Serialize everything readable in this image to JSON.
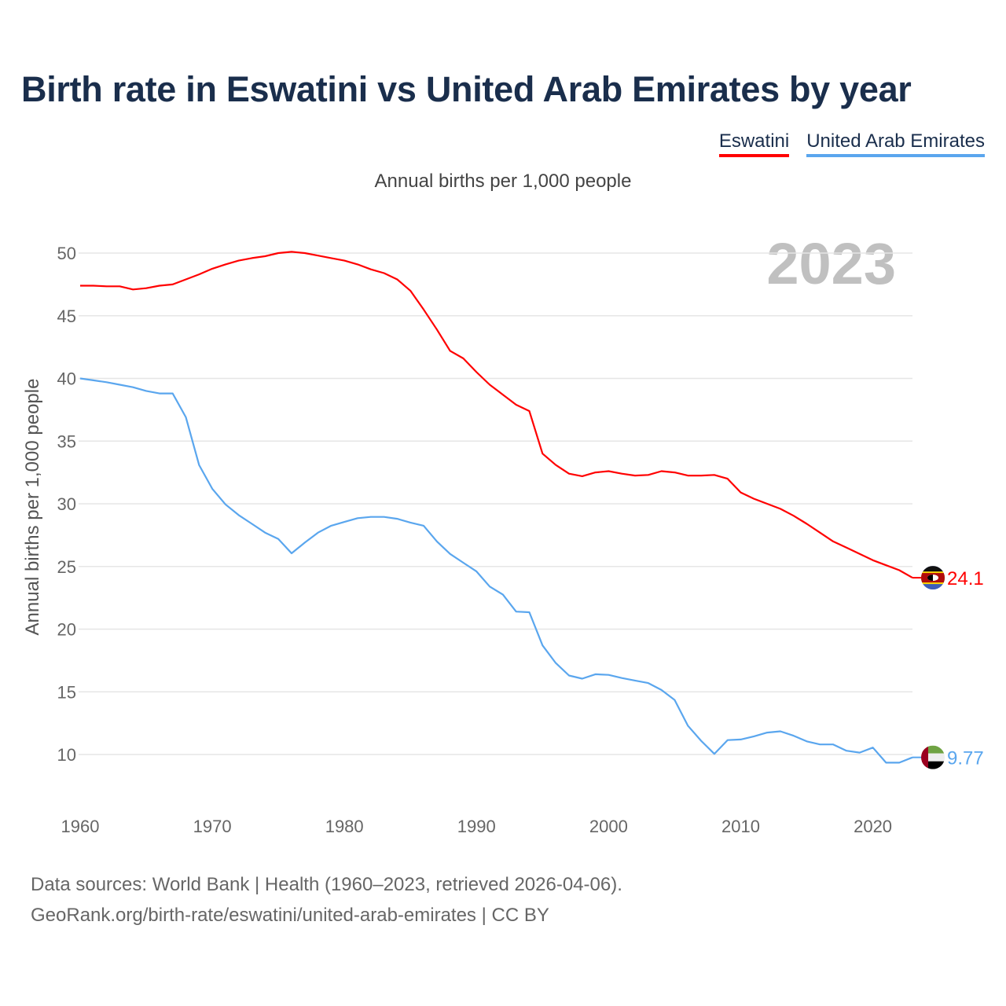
{
  "title": "Birth rate in Eswatini vs United Arab Emirates by year",
  "legend": [
    {
      "label": "Eswatini",
      "color": "#ff0000"
    },
    {
      "label": "United Arab Emirates",
      "color": "#5aa6ee"
    }
  ],
  "footer": {
    "line1": "Data sources: World Bank | Health (1960–2023, retrieved 2026-04-06).",
    "line2": "GeoRank.org/birth-rate/eswatini/united-arab-emirates | CC BY"
  },
  "chart_data": {
    "type": "line",
    "title": "Birth rate in Eswatini vs United Arab Emirates by year",
    "subtitle": "Annual births per 1,000 people",
    "ylabel": "Annual births per 1,000 people",
    "xlabel": "",
    "year_watermark": "2023",
    "xlim": [
      1960,
      2023
    ],
    "ylim": [
      10,
      50
    ],
    "x_ticks": [
      "1960",
      "1970",
      "1980",
      "1990",
      "2000",
      "2010",
      "2020"
    ],
    "y_ticks": [
      "10",
      "15",
      "20",
      "25",
      "30",
      "35",
      "40",
      "45",
      "50"
    ],
    "grid": true,
    "legend_position": "top-right",
    "x": [
      1960,
      1961,
      1962,
      1963,
      1964,
      1965,
      1966,
      1967,
      1968,
      1969,
      1970,
      1971,
      1972,
      1973,
      1974,
      1975,
      1976,
      1977,
      1978,
      1979,
      1980,
      1981,
      1982,
      1983,
      1984,
      1985,
      1986,
      1987,
      1988,
      1989,
      1990,
      1991,
      1992,
      1993,
      1994,
      1995,
      1996,
      1997,
      1998,
      1999,
      2000,
      2001,
      2002,
      2003,
      2004,
      2005,
      2006,
      2007,
      2008,
      2009,
      2010,
      2011,
      2012,
      2013,
      2014,
      2015,
      2016,
      2017,
      2018,
      2019,
      2020,
      2021,
      2022,
      2023
    ],
    "series": [
      {
        "name": "Eswatini",
        "color": "#ff0000",
        "end_label": "24.1",
        "values": [
          47.4,
          47.4,
          47.35,
          47.35,
          47.1,
          47.2,
          47.4,
          47.5,
          47.9,
          48.3,
          48.75,
          49.1,
          49.4,
          49.6,
          49.75,
          50.0,
          50.1,
          50.0,
          49.8,
          49.6,
          49.4,
          49.1,
          48.7,
          48.4,
          47.9,
          47.0,
          45.5,
          43.9,
          42.2,
          41.6,
          40.5,
          39.5,
          38.7,
          37.9,
          37.4,
          34.0,
          33.1,
          32.4,
          32.2,
          32.5,
          32.6,
          32.4,
          32.25,
          32.3,
          32.6,
          32.5,
          32.25,
          32.25,
          32.3,
          32.0,
          30.9,
          30.4,
          30.0,
          29.6,
          29.05,
          28.4,
          27.7,
          27.0,
          26.5,
          26.0,
          25.5,
          25.1,
          24.7,
          24.1
        ]
      },
      {
        "name": "United Arab Emirates",
        "color": "#5aa6ee",
        "end_label": "9.77",
        "values": [
          40.0,
          39.85,
          39.7,
          39.5,
          39.3,
          39.0,
          38.8,
          38.8,
          36.9,
          33.1,
          31.2,
          29.95,
          29.1,
          28.4,
          27.7,
          27.2,
          26.05,
          26.9,
          27.7,
          28.25,
          28.55,
          28.85,
          28.95,
          28.95,
          28.8,
          28.5,
          28.25,
          27.0,
          26.0,
          25.3,
          24.6,
          23.4,
          22.75,
          21.4,
          21.35,
          18.7,
          17.3,
          16.3,
          16.05,
          16.4,
          16.35,
          16.1,
          15.9,
          15.7,
          15.15,
          14.35,
          12.3,
          11.1,
          10.05,
          11.15,
          11.2,
          11.45,
          11.75,
          11.85,
          11.5,
          11.05,
          10.8,
          10.8,
          10.3,
          10.15,
          10.55,
          9.35,
          9.35,
          9.77
        ]
      }
    ]
  }
}
